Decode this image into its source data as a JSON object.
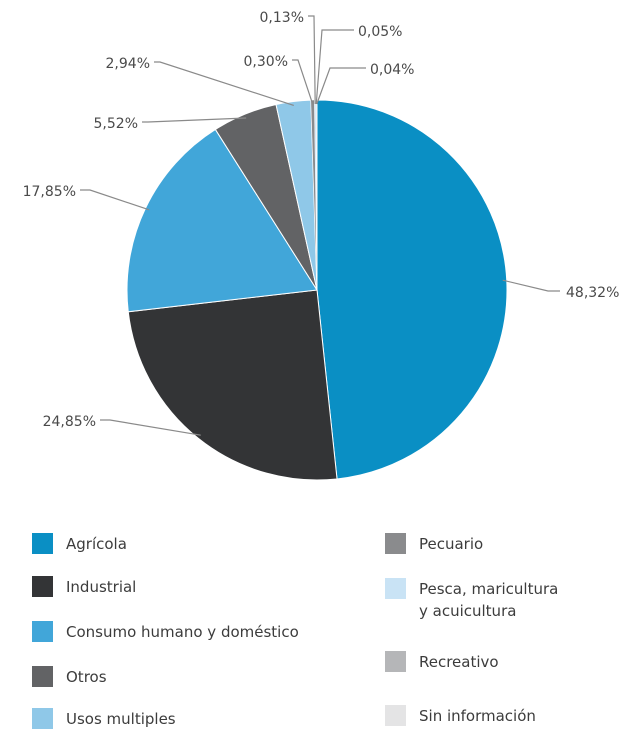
{
  "chart_data": {
    "type": "pie",
    "title": "",
    "slices": [
      {
        "label": "Agrícola",
        "value": 48.32,
        "display": "48,32%",
        "color": "#0a8fc4"
      },
      {
        "label": "Industrial",
        "value": 24.85,
        "display": "24,85%",
        "color": "#333436"
      },
      {
        "label": "Consumo humano y doméstico",
        "value": 17.85,
        "display": "17,85%",
        "color": "#41a6d9"
      },
      {
        "label": "Otros",
        "value": 5.52,
        "display": "5,52%",
        "color": "#626365"
      },
      {
        "label": "Usos multiples",
        "value": 2.94,
        "display": "2,94%",
        "color": "#8fc8e8"
      },
      {
        "label": "Pecuario",
        "value": 0.3,
        "display": "0,30%",
        "color": "#8a8b8d"
      },
      {
        "label": "Pesca, maricultura\ny acuicultura",
        "value": 0.13,
        "display": "0,13%",
        "color": "#c9e3f5"
      },
      {
        "label": "Recreativo",
        "value": 0.05,
        "display": "0,05%",
        "color": "#b5b6b8"
      },
      {
        "label": "Sin información",
        "value": 0.04,
        "display": "0,04%",
        "color": "#e4e4e5"
      }
    ],
    "legend_position": "bottom",
    "start": "top-clockwise"
  },
  "legend": {
    "items": [
      {
        "label": "Agrícola",
        "color": "#0a8fc4"
      },
      {
        "label": "Industrial",
        "color": "#333436"
      },
      {
        "label": "Consumo humano y doméstico",
        "color": "#41a6d9"
      },
      {
        "label": "Otros",
        "color": "#626365"
      },
      {
        "label": "Usos multiples",
        "color": "#8fc8e8"
      },
      {
        "label": "Pecuario",
        "color": "#8a8b8d"
      },
      {
        "label": "Pesca, maricultura\ny acuicultura",
        "color": "#c9e3f5"
      },
      {
        "label": "Recreativo",
        "color": "#b5b6b8"
      },
      {
        "label": "Sin información",
        "color": "#e4e4e5"
      }
    ]
  }
}
